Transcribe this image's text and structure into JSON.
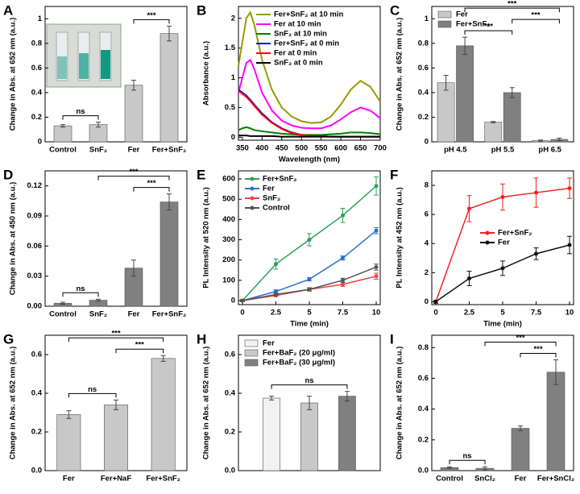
{
  "chart_data": [
    {
      "label": "A",
      "type": "bar",
      "ylabel": "Change in Abs. at 652 nm (a.u.)",
      "categories": [
        "Control",
        "SnF₂",
        "Fer",
        "Fer+SnF₂"
      ],
      "values": [
        0.13,
        0.14,
        0.46,
        0.88
      ],
      "errors": [
        0.01,
        0.02,
        0.04,
        0.06
      ],
      "color": "#c8c8c8",
      "ylim": [
        0,
        1.1
      ],
      "yticks": [
        0,
        0.2,
        0.4,
        0.6,
        0.8,
        1
      ],
      "annotations": [
        "ns",
        "***"
      ]
    },
    {
      "label": "B",
      "type": "line",
      "xlabel": "Wavelength (nm)",
      "ylabel": "Absorbance (a.u.)",
      "x": [
        340,
        350,
        360,
        370,
        380,
        400,
        425,
        450,
        475,
        500,
        525,
        550,
        575,
        600,
        625,
        650,
        675,
        700
      ],
      "series": [
        {
          "name": "Fer+SnF₂ at 10 min",
          "color": "#999900",
          "values": [
            1.2,
            1.6,
            2.0,
            2.1,
            1.9,
            1.3,
            0.8,
            0.5,
            0.35,
            0.27,
            0.24,
            0.25,
            0.35,
            0.55,
            0.8,
            0.95,
            0.85,
            0.6
          ]
        },
        {
          "name": "Fer at 10 min",
          "color": "#ff00ff",
          "values": [
            0.75,
            1.0,
            1.25,
            1.3,
            1.15,
            0.75,
            0.45,
            0.28,
            0.2,
            0.16,
            0.15,
            0.15,
            0.2,
            0.3,
            0.42,
            0.5,
            0.45,
            0.32
          ]
        },
        {
          "name": "SnF₂ at 10 min",
          "color": "#008000",
          "values": [
            0.12,
            0.15,
            0.17,
            0.15,
            0.12,
            0.1,
            0.08,
            0.06,
            0.05,
            0.04,
            0.04,
            0.04,
            0.05,
            0.06,
            0.08,
            0.08,
            0.07,
            0.05
          ]
        },
        {
          "name": "Fer+SnF₂ at 0 min",
          "color": "#0000ff",
          "values": [
            0.8,
            0.75,
            0.7,
            0.63,
            0.55,
            0.4,
            0.25,
            0.15,
            0.08,
            0.04,
            0.02,
            0.02,
            0.01,
            0.01,
            0.01,
            0.01,
            0.01,
            0.01
          ]
        },
        {
          "name": "Fer at 0 min",
          "color": "#ff0000",
          "values": [
            0.78,
            0.73,
            0.68,
            0.61,
            0.53,
            0.38,
            0.24,
            0.14,
            0.07,
            0.04,
            0.02,
            0.02,
            0.01,
            0.01,
            0.01,
            0.01,
            0.01,
            0.01
          ]
        },
        {
          "name": "SnF₂ at 0 min",
          "color": "#000000",
          "values": [
            0.03,
            0.03,
            0.03,
            0.02,
            0.02,
            0.02,
            0.02,
            0.01,
            0.01,
            0.01,
            0.01,
            0.01,
            0.01,
            0.01,
            0.01,
            0.01,
            0.01,
            0.01
          ]
        }
      ],
      "xlim": [
        340,
        700
      ],
      "xticks": [
        350,
        400,
        450,
        500,
        550,
        600,
        650,
        700
      ],
      "ylim": [
        -0.05,
        2.2
      ],
      "yticks": [
        0,
        0.5,
        1,
        1.5,
        2
      ],
      "legend": "upper right",
      "markers": false
    },
    {
      "label": "C",
      "type": "bar",
      "ylabel": "Change in Abs. at 652 nm (a.u.)",
      "categories": [
        "pH 4.5",
        "pH 5.5",
        "pH 6.5"
      ],
      "series": [
        {
          "name": "Fer",
          "color": "#c8c8c8",
          "values": [
            0.48,
            0.16,
            0.01
          ],
          "errors": [
            0.06,
            0.005,
            0.005
          ]
        },
        {
          "name": "Fer+SnF₂",
          "color": "#808080",
          "values": [
            0.78,
            0.4,
            0.02
          ],
          "errors": [
            0.07,
            0.04,
            0.01
          ]
        }
      ],
      "ylim": [
        0,
        1.1
      ],
      "yticks": [
        0,
        0.2,
        0.4,
        0.6,
        0.8,
        1
      ],
      "legend": "upper left",
      "annotations": [
        "***",
        "***",
        "***"
      ]
    },
    {
      "label": "D",
      "type": "bar",
      "ylabel": "Change in Abs. at 450 nm (a.u.)",
      "categories": [
        "Control",
        "SnF₂",
        "Fer",
        "Fer+SnF₂"
      ],
      "values": [
        0.003,
        0.006,
        0.038,
        0.104
      ],
      "errors": [
        0.001,
        0.001,
        0.008,
        0.008
      ],
      "color": "#808080",
      "ylim": [
        0,
        0.135
      ],
      "yticks": [
        {
          "value": 0,
          "label": "0.00"
        },
        0.03,
        0.06,
        0.09,
        0.12
      ],
      "annotations": [
        "ns",
        "***",
        "***"
      ]
    },
    {
      "label": "E",
      "type": "line",
      "xlabel": "Time (min)",
      "ylabel": "PL Intensity at 520 nm (a.u.)",
      "x": [
        0,
        2.5,
        5,
        7.5,
        10
      ],
      "series": [
        {
          "name": "Fer+SnF₂",
          "color": "#2ca05a",
          "values": [
            0,
            180,
            300,
            420,
            565
          ],
          "errors": [
            5,
            25,
            30,
            35,
            45
          ]
        },
        {
          "name": "Fer",
          "color": "#2f6fd6",
          "values": [
            0,
            45,
            105,
            210,
            345
          ],
          "errors": [
            5,
            8,
            8,
            10,
            15
          ]
        },
        {
          "name": "SnF₂",
          "color": "#ee4444",
          "values": [
            0,
            25,
            55,
            80,
            120
          ],
          "errors": [
            5,
            5,
            8,
            10,
            15
          ]
        },
        {
          "name": "Control",
          "color": "#555555",
          "values": [
            0,
            30,
            55,
            100,
            165
          ],
          "errors": [
            5,
            5,
            8,
            10,
            15
          ]
        }
      ],
      "xlim": [
        -0.3,
        10.3
      ],
      "xticks": [
        0,
        2.5,
        5,
        7.5,
        10
      ],
      "ylim": [
        -20,
        640
      ],
      "yticks": [
        0,
        100,
        200,
        300,
        400,
        500,
        600
      ],
      "legend": "upper left",
      "markers": true
    },
    {
      "label": "F",
      "type": "line",
      "xlabel": "Time (min)",
      "ylabel": "PL Intensity at 452 nm (a.u.)",
      "x": [
        0,
        2.5,
        5,
        7.5,
        10
      ],
      "series": [
        {
          "name": "Fer+SnF₂",
          "color": "#ee2222",
          "values": [
            0,
            6.4,
            7.2,
            7.5,
            7.8
          ],
          "errors": [
            0.1,
            0.9,
            0.9,
            1.0,
            0.7
          ]
        },
        {
          "name": "Fer",
          "color": "#111111",
          "values": [
            0,
            1.6,
            2.3,
            3.3,
            3.9
          ],
          "errors": [
            0.1,
            0.5,
            0.5,
            0.4,
            0.6
          ]
        }
      ],
      "xlim": [
        -0.3,
        10.3
      ],
      "xticks": [
        0,
        2.5,
        5,
        7.5,
        10
      ],
      "ylim": [
        -0.2,
        9
      ],
      "yticks": [
        0,
        2,
        4,
        6,
        8
      ],
      "legend": "center right",
      "markers": true
    },
    {
      "label": "G",
      "type": "bar",
      "ylabel": "Change in Abs. at 652 nm (a.u.)",
      "categories": [
        "Fer",
        "Fer+NaF",
        "Fer+SnF₂"
      ],
      "values": [
        0.29,
        0.34,
        0.58
      ],
      "errors": [
        0.02,
        0.025,
        0.015
      ],
      "color": "#c8c8c8",
      "ylim": [
        0,
        0.7
      ],
      "yticks": [
        {
          "value": 0,
          "label": "0.0"
        },
        0.2,
        0.4,
        0.6
      ],
      "annotations": [
        "ns",
        "***",
        "***"
      ]
    },
    {
      "label": "H",
      "type": "bar",
      "ylabel": "Change in Abs. at 652 nm (a.u.)",
      "categories": [
        null
      ],
      "series": [
        {
          "name": "Fer",
          "color": "#f2f2f2",
          "values": [
            0.375
          ],
          "errors": [
            0.01
          ]
        },
        {
          "name": "Fer+BaF₂ (20 μg/ml)",
          "color": "#c8c8c8",
          "values": [
            0.35
          ],
          "errors": [
            0.035
          ]
        },
        {
          "name": "Fer+BaF₂ (30 μg/ml)",
          "color": "#808080",
          "values": [
            0.385
          ],
          "errors": [
            0.025
          ]
        }
      ],
      "ylim": [
        0,
        0.7
      ],
      "yticks": [
        {
          "value": 0,
          "label": "0.0"
        },
        0.2,
        0.4,
        0.6
      ],
      "legend": "upper left",
      "annotations": [
        "ns"
      ]
    },
    {
      "label": "I",
      "type": "bar",
      "ylabel": "Change in Abs. at 652 nm (a.u.)",
      "categories": [
        "Control",
        "SnCl₂",
        "Fer",
        "Fer+SnCl₂"
      ],
      "values": [
        0.02,
        0.015,
        0.275,
        0.64
      ],
      "errors": [
        0.005,
        0.01,
        0.015,
        0.08
      ],
      "color": "#808080",
      "ylim": [
        0,
        0.88
      ],
      "yticks": [
        {
          "value": 0,
          "label": "0.0"
        },
        0.2,
        0.4,
        0.6,
        0.8
      ],
      "annotations": [
        "ns",
        "***",
        "***"
      ]
    }
  ]
}
